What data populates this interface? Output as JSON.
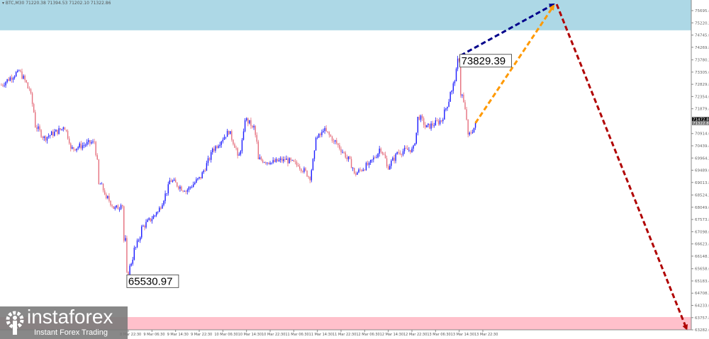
{
  "header": {
    "symbol": "BTC,M30",
    "ohlc": "71220.38 71394.53 71202.10 71322.86"
  },
  "logo": {
    "brand": "instaforex",
    "tagline": "Instant Forex Trading"
  },
  "colors": {
    "bull": "#1a1aff",
    "bear": "#e5707e",
    "resistance_zone": "#add8e6",
    "support_zone": "#ffc0cb",
    "projection_up": "#00008b",
    "projection_alt": "#ff9900",
    "projection_down": "#b00000"
  },
  "chart_data": {
    "type": "candlestick",
    "timeframe": "M30",
    "y_ticks": [
      75695.43,
      75220.23,
      74745.03,
      74269.83,
      73780.23,
      73305.03,
      72829.83,
      72354.63,
      71879.43,
      70914.63,
      70439.43,
      69964.23,
      69489.03,
      69013.83,
      68524.23,
      68049.03,
      67573.83,
      67098.63,
      66623.43,
      66148.23,
      65658.63,
      65183.43,
      64708.23,
      64233.03,
      63757.83,
      63282.63
    ],
    "x_ticks": [
      "8 Mar 22:30",
      "9 Mar 06:30",
      "9 Mar 14:30",
      "9 Mar 22:30",
      "10 Mar 06:30",
      "10 Mar 14:30",
      "10 Mar 22:30",
      "11 Mar 06:30",
      "11 Mar 14:30",
      "11 Mar 22:30",
      "12 Mar 06:30",
      "12 Mar 14:30",
      "12 Mar 22:30",
      "13 Mar 06:30",
      "13 Mar 14:30",
      "13 Mar 22:30"
    ],
    "price_path": [
      [
        "7 Mar 03:00",
        72806
      ],
      [
        "7 Mar 09:00",
        73356
      ],
      [
        "7 Mar 12:30",
        72668
      ],
      [
        "7 Mar 15:00",
        71154
      ],
      [
        "7 Mar 17:30",
        70742
      ],
      [
        "8 Mar 00:30",
        71154
      ],
      [
        "8 Mar 03:00",
        70329
      ],
      [
        "8 Mar 10:30",
        70604
      ],
      [
        "8 Mar 12:30",
        68953
      ],
      [
        "8 Mar 15:00",
        68402
      ],
      [
        "8 Mar 17:30",
        67990
      ],
      [
        "8 Mar 20:00",
        68127
      ],
      [
        "8 Mar 21:00",
        66751
      ],
      [
        "8 Mar 22:00",
        65531
      ],
      [
        "9 Mar 00:30",
        66476
      ],
      [
        "9 Mar 03:00",
        67301
      ],
      [
        "9 Mar 08:00",
        67852
      ],
      [
        "9 Mar 12:30",
        69090
      ],
      [
        "9 Mar 17:30",
        68677
      ],
      [
        "9 Mar 22:30",
        69227
      ],
      [
        "10 Mar 03:00",
        70329
      ],
      [
        "10 Mar 08:00",
        71017
      ],
      [
        "10 Mar 11:30",
        70054
      ],
      [
        "10 Mar 14:00",
        71430
      ],
      [
        "10 Mar 16:30",
        71154
      ],
      [
        "10 Mar 18:30",
        69916
      ],
      [
        "10 Mar 22:30",
        69779
      ],
      [
        "11 Mar 03:00",
        69916
      ],
      [
        "11 Mar 08:00",
        69641
      ],
      [
        "11 Mar 11:30",
        69227
      ],
      [
        "11 Mar 14:00",
        70742
      ],
      [
        "11 Mar 16:30",
        71017
      ],
      [
        "11 Mar 20:00",
        70604
      ],
      [
        "12 Mar 00:30",
        69916
      ],
      [
        "12 Mar 03:00",
        69366
      ],
      [
        "12 Mar 08:00",
        69779
      ],
      [
        "12 Mar 11:30",
        70329
      ],
      [
        "12 Mar 14:00",
        69641
      ],
      [
        "12 Mar 17:30",
        70191
      ],
      [
        "12 Mar 22:30",
        70329
      ],
      [
        "13 Mar 00:30",
        71567
      ],
      [
        "13 Mar 03:00",
        71154
      ],
      [
        "13 Mar 08:00",
        71430
      ],
      [
        "13 Mar 11:30",
        72530
      ],
      [
        "13 Mar 14:00",
        73829
      ],
      [
        "13 Mar 15:00",
        72393
      ],
      [
        "13 Mar 17:30",
        70879
      ],
      [
        "13 Mar 20:00",
        71322
      ]
    ],
    "annotations": {
      "high": {
        "label": "73829.39",
        "time": "13 Mar 14:00",
        "price": 73829.39
      },
      "low": {
        "label": "65530.97",
        "time": "8 Mar 22:00",
        "price": 65530.97
      }
    },
    "price_badges": {
      "bid": "71472.86",
      "last": "71322.86"
    },
    "zones": {
      "resistance": [
        74930,
        76200
      ],
      "support": [
        62900,
        63780
      ]
    },
    "projections": [
      {
        "from": [
          "13 Mar 15:00",
          73950
        ],
        "to": [
          "14 Mar 22:30",
          75943
        ],
        "style": "dashed",
        "color_key": "projection_up"
      },
      {
        "from": [
          "13 Mar 20:00",
          71322
        ],
        "to": [
          "14 Mar 22:30",
          75890
        ],
        "style": "dashed",
        "color_key": "projection_alt"
      },
      {
        "from": [
          "14 Mar 23:30",
          75943
        ],
        "to": [
          "16 Mar 19:30",
          63311
        ],
        "style": "dashed",
        "color_key": "projection_down"
      }
    ]
  }
}
